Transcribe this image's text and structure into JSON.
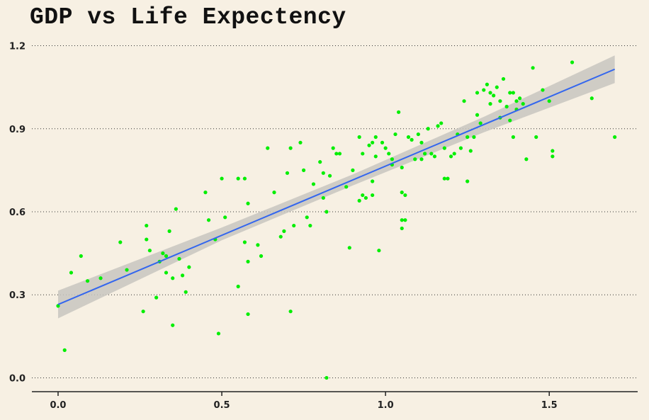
{
  "chart_data": {
    "type": "scatter",
    "title": "GDP vs Life Expectency",
    "xlabel": "",
    "ylabel": "",
    "xlim": [
      -0.08,
      1.77
    ],
    "ylim": [
      -0.05,
      1.25
    ],
    "x_ticks": [
      0.0,
      0.5,
      1.0,
      1.5
    ],
    "x_tick_labels": [
      "0.0",
      "0.5",
      "1.0",
      "1.5"
    ],
    "y_ticks": [
      0.0,
      0.3,
      0.6,
      0.9,
      1.2
    ],
    "y_tick_labels": [
      "0.0",
      "0.3",
      "0.6",
      "0.9",
      "1.2"
    ],
    "grid": "horizontal dotted",
    "colors": {
      "background": "#f7f0e3",
      "points": "#00ee00",
      "fit_line": "#3366ee",
      "confidence_band": "#c8c6c0",
      "grid": "#333333",
      "axis": "#222222"
    },
    "series": [
      {
        "points": [
          [
            0.0,
            0.26
          ],
          [
            0.02,
            0.1
          ],
          [
            0.04,
            0.38
          ],
          [
            0.07,
            0.44
          ],
          [
            0.09,
            0.35
          ],
          [
            0.13,
            0.36
          ],
          [
            0.19,
            0.49
          ],
          [
            0.21,
            0.39
          ],
          [
            0.26,
            0.24
          ],
          [
            0.27,
            0.55
          ],
          [
            0.27,
            0.5
          ],
          [
            0.28,
            0.46
          ],
          [
            0.3,
            0.29
          ],
          [
            0.31,
            0.42
          ],
          [
            0.32,
            0.45
          ],
          [
            0.33,
            0.44
          ],
          [
            0.33,
            0.38
          ],
          [
            0.34,
            0.53
          ],
          [
            0.35,
            0.36
          ],
          [
            0.35,
            0.19
          ],
          [
            0.36,
            0.61
          ],
          [
            0.37,
            0.43
          ],
          [
            0.38,
            0.37
          ],
          [
            0.39,
            0.31
          ],
          [
            0.4,
            0.4
          ],
          [
            0.45,
            0.67
          ],
          [
            0.46,
            0.57
          ],
          [
            0.48,
            0.5
          ],
          [
            0.49,
            0.16
          ],
          [
            0.5,
            0.72
          ],
          [
            0.51,
            0.58
          ],
          [
            0.55,
            0.33
          ],
          [
            0.55,
            0.72
          ],
          [
            0.57,
            0.72
          ],
          [
            0.57,
            0.49
          ],
          [
            0.58,
            0.42
          ],
          [
            0.58,
            0.63
          ],
          [
            0.58,
            0.23
          ],
          [
            0.61,
            0.48
          ],
          [
            0.62,
            0.44
          ],
          [
            0.64,
            0.83
          ],
          [
            0.66,
            0.67
          ],
          [
            0.68,
            0.51
          ],
          [
            0.69,
            0.53
          ],
          [
            0.7,
            0.74
          ],
          [
            0.71,
            0.83
          ],
          [
            0.71,
            0.24
          ],
          [
            0.72,
            0.55
          ],
          [
            0.74,
            0.85
          ],
          [
            0.75,
            0.75
          ],
          [
            0.76,
            0.58
          ],
          [
            0.77,
            0.55
          ],
          [
            0.78,
            0.7
          ],
          [
            0.8,
            0.78
          ],
          [
            0.81,
            0.74
          ],
          [
            0.81,
            0.65
          ],
          [
            0.82,
            0.6
          ],
          [
            0.82,
            0.0
          ],
          [
            0.83,
            0.73
          ],
          [
            0.84,
            0.83
          ],
          [
            0.85,
            0.81
          ],
          [
            0.86,
            0.81
          ],
          [
            0.88,
            0.69
          ],
          [
            0.89,
            0.47
          ],
          [
            0.9,
            0.75
          ],
          [
            0.92,
            0.64
          ],
          [
            0.92,
            0.87
          ],
          [
            0.93,
            0.81
          ],
          [
            0.94,
            0.65
          ],
          [
            0.95,
            0.84
          ],
          [
            0.96,
            0.85
          ],
          [
            0.96,
            0.66
          ],
          [
            0.97,
            0.8
          ],
          [
            0.97,
            0.87
          ],
          [
            0.98,
            0.46
          ],
          [
            0.99,
            0.85
          ],
          [
            1.0,
            0.83
          ],
          [
            1.01,
            0.81
          ],
          [
            1.02,
            0.77
          ],
          [
            1.02,
            0.79
          ],
          [
            1.03,
            0.88
          ],
          [
            1.04,
            0.96
          ],
          [
            1.05,
            0.76
          ],
          [
            1.05,
            0.67
          ],
          [
            1.05,
            0.54
          ],
          [
            1.05,
            0.57
          ],
          [
            1.06,
            0.66
          ],
          [
            1.06,
            0.57
          ],
          [
            1.07,
            0.87
          ],
          [
            1.08,
            0.86
          ],
          [
            1.09,
            0.79
          ],
          [
            1.1,
            0.88
          ],
          [
            1.11,
            0.79
          ],
          [
            1.12,
            0.81
          ],
          [
            1.13,
            0.9
          ],
          [
            1.14,
            0.81
          ],
          [
            1.16,
            0.91
          ],
          [
            1.17,
            0.92
          ],
          [
            1.18,
            0.83
          ],
          [
            1.18,
            0.72
          ],
          [
            1.19,
            0.72
          ],
          [
            1.2,
            0.8
          ],
          [
            1.21,
            0.81
          ],
          [
            1.22,
            0.88
          ],
          [
            1.23,
            0.83
          ],
          [
            1.24,
            1.0
          ],
          [
            1.25,
            0.71
          ],
          [
            1.26,
            0.82
          ],
          [
            1.27,
            0.87
          ],
          [
            1.28,
            0.95
          ],
          [
            1.29,
            0.92
          ],
          [
            1.3,
            1.04
          ],
          [
            1.31,
            1.06
          ],
          [
            1.32,
            1.03
          ],
          [
            1.33,
            1.02
          ],
          [
            1.34,
            1.05
          ],
          [
            1.35,
            1.0
          ],
          [
            1.36,
            1.08
          ],
          [
            1.37,
            0.98
          ],
          [
            1.38,
            0.93
          ],
          [
            1.38,
            1.03
          ],
          [
            1.39,
            1.03
          ],
          [
            1.4,
            1.0
          ],
          [
            1.4,
            0.97
          ],
          [
            1.41,
            1.01
          ],
          [
            1.42,
            0.99
          ],
          [
            1.43,
            0.79
          ],
          [
            1.45,
            1.12
          ],
          [
            1.46,
            0.87
          ],
          [
            1.48,
            1.04
          ],
          [
            1.5,
            1.0
          ],
          [
            1.51,
            0.8
          ],
          [
            1.51,
            0.82
          ],
          [
            1.57,
            1.14
          ],
          [
            1.63,
            1.01
          ],
          [
            1.7,
            0.87
          ],
          [
            1.32,
            0.99
          ],
          [
            1.25,
            0.87
          ],
          [
            1.15,
            0.8
          ],
          [
            0.96,
            0.71
          ],
          [
            0.93,
            0.66
          ],
          [
            1.35,
            0.94
          ],
          [
            1.39,
            0.87
          ],
          [
            1.11,
            0.85
          ],
          [
            1.28,
            1.03
          ]
        ]
      }
    ],
    "fit": {
      "method": "linear",
      "x_range": [
        0.0,
        1.7
      ],
      "intercept": 0.265,
      "slope": 0.5,
      "band": [
        {
          "x": 0.0,
          "lower": 0.215,
          "upper": 0.315
        },
        {
          "x": 0.5,
          "lower": 0.497,
          "upper": 0.543
        },
        {
          "x": 0.9,
          "lower": 0.695,
          "upper": 0.735
        },
        {
          "x": 1.3,
          "lower": 0.887,
          "upper": 0.943
        },
        {
          "x": 1.7,
          "lower": 1.065,
          "upper": 1.165
        }
      ]
    }
  }
}
